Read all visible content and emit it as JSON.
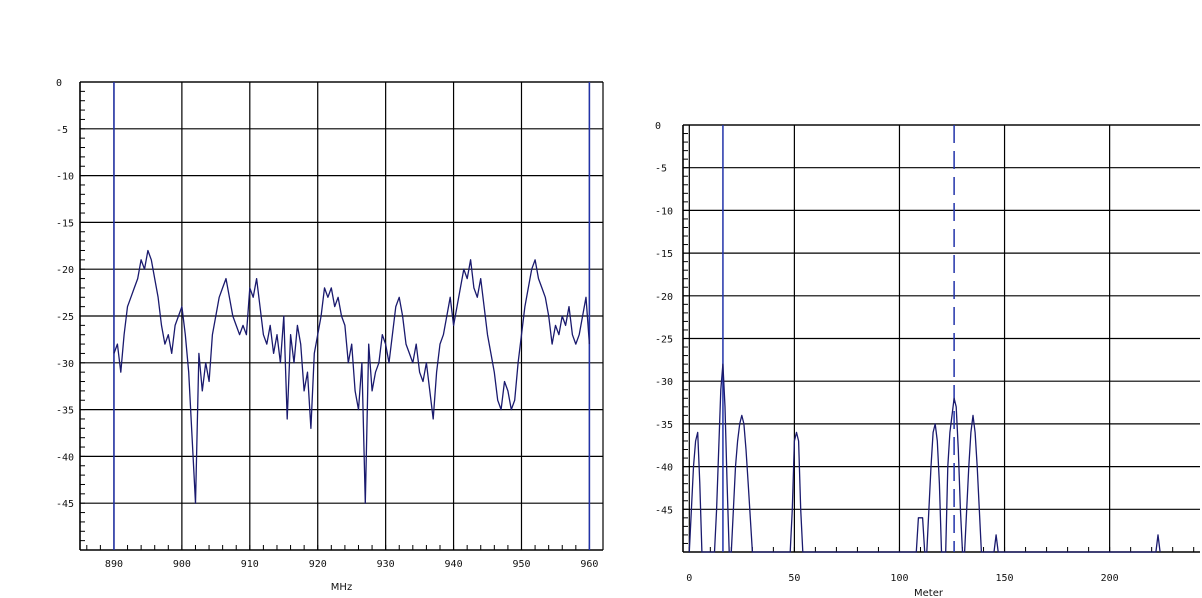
{
  "chart_data": [
    {
      "type": "line",
      "xlabel": "MHz",
      "ylabel": "",
      "xlim": [
        885,
        962
      ],
      "ylim": [
        -50,
        0
      ],
      "x_ticks": [
        890,
        900,
        910,
        920,
        930,
        940,
        950,
        960
      ],
      "y_ticks": [
        0,
        -5,
        -10,
        -15,
        -20,
        -25,
        -30,
        -35,
        -40,
        -45
      ],
      "markers": [
        890,
        960
      ],
      "series": [
        {
          "x": [
            890,
            890.5,
            891,
            891.5,
            892,
            892.5,
            893,
            893.5,
            894,
            894.5,
            895,
            895.5,
            896,
            896.5,
            897,
            897.5,
            898,
            898.5,
            899,
            899.5,
            900,
            900.5,
            901,
            901.5,
            902,
            902.5,
            903,
            903.5,
            904,
            904.5,
            905,
            905.5,
            906,
            906.5,
            907,
            907.5,
            908,
            908.5,
            909,
            909.5,
            910,
            910.5,
            911,
            911.5,
            912,
            912.5,
            913,
            913.5,
            914,
            914.5,
            915,
            915.5,
            916,
            916.5,
            917,
            917.5,
            918,
            918.5,
            919,
            919.5,
            920,
            920.5,
            921,
            921.5,
            922,
            922.5,
            923,
            923.5,
            924,
            924.5,
            925,
            925.5,
            926,
            926.5,
            927,
            927.5,
            928,
            928.5,
            929,
            929.5,
            930,
            930.5,
            931,
            931.5,
            932,
            932.5,
            933,
            933.5,
            934,
            934.5,
            935,
            935.5,
            936,
            936.5,
            937,
            937.5,
            938,
            938.5,
            939,
            939.5,
            940,
            940.5,
            941,
            941.5,
            942,
            942.5,
            943,
            943.5,
            944,
            944.5,
            945,
            945.5,
            946,
            946.5,
            947,
            947.5,
            948,
            948.5,
            949,
            949.5,
            950,
            950.5,
            951,
            951.5,
            952,
            952.5,
            953,
            953.5,
            954,
            954.5,
            955,
            955.5,
            956,
            956.5,
            957,
            957.5,
            958,
            958.5,
            959,
            959.5,
            960
          ],
          "y": [
            -29,
            -28,
            -31,
            -27,
            -24,
            -23,
            -22,
            -21,
            -19,
            -20,
            -18,
            -19,
            -21,
            -23,
            -26,
            -28,
            -27,
            -29,
            -26,
            -25,
            -24,
            -27,
            -31,
            -38,
            -45,
            -29,
            -33,
            -30,
            -32,
            -27,
            -25,
            -23,
            -22,
            -21,
            -23,
            -25,
            -26,
            -27,
            -26,
            -27,
            -22,
            -23,
            -21,
            -24,
            -27,
            -28,
            -26,
            -29,
            -27,
            -30,
            -25,
            -36,
            -27,
            -30,
            -26,
            -28,
            -33,
            -31,
            -37,
            -29,
            -27,
            -25,
            -22,
            -23,
            -22,
            -24,
            -23,
            -25,
            -26,
            -30,
            -28,
            -33,
            -35,
            -30,
            -45,
            -28,
            -33,
            -31,
            -30,
            -27,
            -28,
            -30,
            -27,
            -24,
            -23,
            -25,
            -28,
            -29,
            -30,
            -28,
            -31,
            -32,
            -30,
            -33,
            -36,
            -31,
            -28,
            -27,
            -25,
            -23,
            -26,
            -24,
            -22,
            -20,
            -21,
            -19,
            -22,
            -23,
            -21,
            -24,
            -27,
            -29,
            -31,
            -34,
            -35,
            -32,
            -33,
            -35,
            -34,
            -30,
            -27,
            -24,
            -22,
            -20,
            -19,
            -21,
            -22,
            -23,
            -25,
            -28,
            -26,
            -27,
            -25,
            -26,
            -24,
            -27,
            -28,
            -27,
            -25,
            -23,
            -28
          ]
        }
      ]
    },
    {
      "type": "line",
      "xlabel": "Meter",
      "ylabel": "",
      "xlim": [
        -3,
        243
      ],
      "ylim": [
        -50,
        0
      ],
      "x_ticks": [
        0,
        50,
        100,
        150,
        200
      ],
      "y_ticks": [
        0,
        -5,
        -10,
        -15,
        -20,
        -25,
        -30,
        -35,
        -40,
        -45
      ],
      "markers": [
        16,
        126
      ],
      "series": [
        {
          "x": [
            0,
            1,
            2,
            3,
            4,
            5,
            6,
            7,
            8,
            9,
            10,
            11,
            12,
            13,
            14,
            15,
            16,
            17,
            18,
            19,
            20,
            21,
            22,
            23,
            24,
            25,
            26,
            27,
            28,
            29,
            30,
            31,
            48,
            49,
            50,
            51,
            52,
            53,
            54,
            55,
            108,
            109,
            110,
            111,
            112,
            113,
            114,
            115,
            116,
            117,
            118,
            119,
            120,
            121,
            122,
            123,
            124,
            125,
            126,
            127,
            128,
            129,
            130,
            131,
            132,
            133,
            134,
            135,
            136,
            137,
            138,
            139,
            140,
            141,
            145,
            146,
            147,
            222,
            223,
            224
          ],
          "y": [
            -50,
            -45,
            -40,
            -37,
            -36,
            -42,
            -50,
            -50,
            -50,
            -50,
            -50,
            -50,
            -50,
            -45,
            -38,
            -31,
            -28,
            -33,
            -42,
            -50,
            -50,
            -45,
            -40,
            -37,
            -35,
            -34,
            -35,
            -38,
            -42,
            -46,
            -50,
            -50,
            -50,
            -45,
            -37,
            -36,
            -37,
            -45,
            -50,
            -50,
            -50,
            -46,
            -46,
            -46,
            -50,
            -50,
            -45,
            -40,
            -36,
            -35,
            -37,
            -42,
            -50,
            -50,
            -50,
            -40,
            -36,
            -34,
            -32,
            -33,
            -38,
            -45,
            -50,
            -50,
            -45,
            -40,
            -36,
            -34,
            -36,
            -40,
            -45,
            -50,
            -50,
            -50,
            -50,
            -48,
            -50,
            -50,
            -48,
            -50
          ]
        }
      ]
    }
  ]
}
